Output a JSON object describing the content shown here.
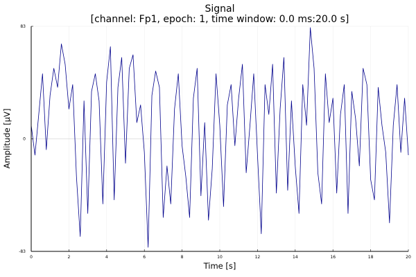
{
  "chart_data": {
    "type": "line",
    "title": "Signal",
    "subtitle": "[channel: Fp1, epoch: 1, time window: 0.0 ms:20.0 s]",
    "xlabel": "Time [s]",
    "ylabel": "Amplitude [μV]",
    "xlim": [
      0,
      20
    ],
    "ylim": [
      -83,
      83
    ],
    "x_ticks": [
      0,
      2,
      4,
      6,
      8,
      10,
      12,
      14,
      16,
      18,
      20
    ],
    "x_tick_labels": [
      "0",
      "2",
      "4",
      "6",
      "8",
      "10",
      "12",
      "14",
      "16",
      "18",
      "20"
    ],
    "y_ticks": [
      -83,
      0,
      83
    ],
    "y_tick_labels": [
      "-83",
      "0",
      "83"
    ],
    "zero_line": true,
    "grid": true,
    "legend": "none",
    "series": [
      {
        "color": "#00008b",
        "x": [
          0.0,
          0.2,
          0.4,
          0.6,
          0.8,
          1.0,
          1.2,
          1.4,
          1.6,
          1.8,
          2.0,
          2.2,
          2.4,
          2.6,
          2.8,
          3.0,
          3.2,
          3.4,
          3.6,
          3.8,
          4.0,
          4.2,
          4.4,
          4.6,
          4.8,
          5.0,
          5.2,
          5.4,
          5.6,
          5.8,
          6.0,
          6.2,
          6.4,
          6.6,
          6.8,
          7.0,
          7.2,
          7.4,
          7.6,
          7.8,
          8.0,
          8.2,
          8.4,
          8.6,
          8.8,
          9.0,
          9.2,
          9.4,
          9.6,
          9.8,
          10.0,
          10.2,
          10.4,
          10.6,
          10.8,
          11.0,
          11.2,
          11.4,
          11.6,
          11.8,
          12.0,
          12.2,
          12.4,
          12.6,
          12.8,
          13.0,
          13.2,
          13.4,
          13.6,
          13.8,
          14.0,
          14.2,
          14.4,
          14.6,
          14.8,
          15.0,
          15.2,
          15.4,
          15.6,
          15.8,
          16.0,
          16.2,
          16.4,
          16.6,
          16.8,
          17.0,
          17.2,
          17.4,
          17.6,
          17.8,
          18.0,
          18.2,
          18.4,
          18.6,
          18.8,
          19.0,
          19.2,
          19.4,
          19.6,
          19.8,
          20.0
        ],
        "values": [
          10,
          -12,
          18,
          48,
          -8,
          32,
          52,
          38,
          70,
          55,
          22,
          40,
          -28,
          -72,
          28,
          -55,
          35,
          48,
          28,
          -48,
          42,
          68,
          -45,
          38,
          60,
          -18,
          52,
          62,
          12,
          25,
          -10,
          -80,
          32,
          50,
          38,
          -58,
          -20,
          -48,
          22,
          48,
          -5,
          -28,
          -58,
          30,
          52,
          -42,
          12,
          -60,
          -22,
          48,
          10,
          -50,
          25,
          40,
          -5,
          30,
          55,
          -25,
          10,
          48,
          -12,
          -70,
          40,
          18,
          55,
          -40,
          22,
          60,
          -38,
          28,
          -20,
          -55,
          40,
          10,
          82,
          52,
          -25,
          -48,
          48,
          12,
          30,
          -40,
          18,
          40,
          -55,
          35,
          15,
          -20,
          52,
          40,
          -30,
          -45,
          38,
          10,
          -10,
          -62,
          10,
          40,
          -10,
          30,
          -12
        ]
      }
    ]
  }
}
